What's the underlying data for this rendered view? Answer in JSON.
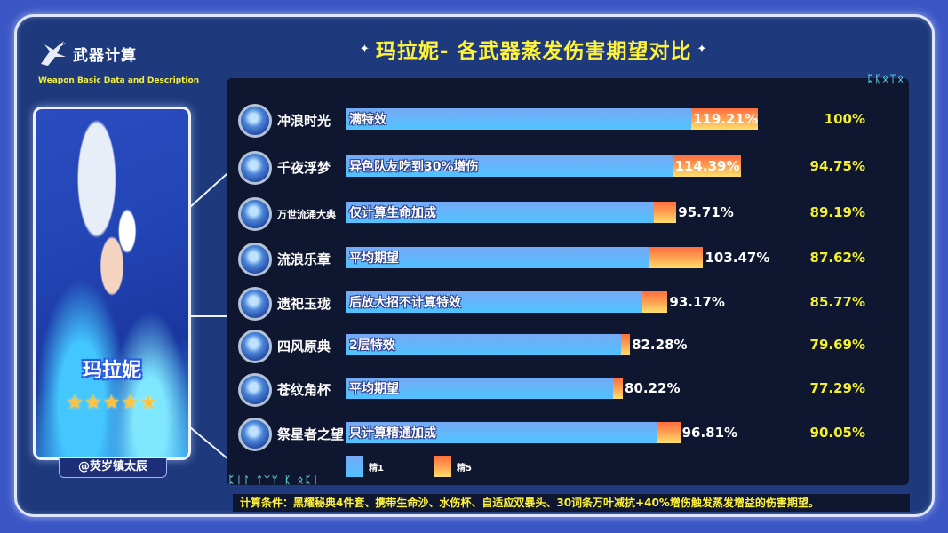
{
  "header": {
    "logo_text": "武器计算",
    "subtitle": "Weapon Basic Data and Description",
    "title": "玛拉妮- 各武器蒸发伤害期望对比",
    "sparkle_left": "✦",
    "sparkle_right": "✦"
  },
  "character": {
    "name": "玛拉妮",
    "stars": "★★★★★",
    "rarity": 5,
    "author": "@荧岁镇太辰"
  },
  "colors": {
    "refine1": "#5bb7ff",
    "refine5": "#ff8a48",
    "ratio_text": "#f4f02e",
    "panel_bg": "#0f1630",
    "frame_bg": "#1e3a7c"
  },
  "panel": {
    "deco_top": "ᛈᛕᛟᛉᛟ",
    "deco_bottom": "ᛈᛁᛚ ᛏᛉᛘ ᛕ ᛟᛈᛁ"
  },
  "legend": {
    "r1_label": "精1",
    "r5_label": "精5"
  },
  "rows": [
    {
      "weapon": "冲浪时光",
      "note": "满特效",
      "r1": 100.0,
      "r5": 119.21,
      "r5_label": "119.21%",
      "ratio": "100%",
      "icon": "surfs-up-icon",
      "small": false,
      "inside": true
    },
    {
      "weapon": "千夜浮梦",
      "note": "异色队友吃到30%增伤",
      "r1": 94.75,
      "r5": 114.39,
      "r5_label": "114.39%",
      "ratio": "94.75%",
      "icon": "thousand-floating-dreams-icon",
      "small": false,
      "inside": true
    },
    {
      "weapon": "万世流涌大典",
      "note": "仅计算生命加成",
      "r1": 89.19,
      "r5": 95.71,
      "r5_label": "95.71%",
      "ratio": "89.19%",
      "icon": "prototype-amber-icon",
      "small": true,
      "inside": false
    },
    {
      "weapon": "流浪乐章",
      "note": "平均期望",
      "r1": 87.62,
      "r5": 103.47,
      "r5_label": "103.47%",
      "ratio": "87.62%",
      "icon": "widsith-icon",
      "small": false,
      "inside": false
    },
    {
      "weapon": "遗祀玉珑",
      "note": "后放大招不计算特效",
      "r1": 85.77,
      "r5": 93.17,
      "r5_label": "93.17%",
      "ratio": "85.77%",
      "icon": "jadefall-splendor-icon",
      "small": false,
      "inside": false
    },
    {
      "weapon": "四风原典",
      "note": "2层特效",
      "r1": 79.69,
      "r5": 82.28,
      "r5_label": "82.28%",
      "ratio": "79.69%",
      "icon": "lost-prayer-icon",
      "small": false,
      "inside": false
    },
    {
      "weapon": "苍纹角杯",
      "note": "平均期望",
      "r1": 77.29,
      "r5": 80.22,
      "r5_label": "80.22%",
      "ratio": "77.29%",
      "icon": "ring-of-yaxche-icon",
      "small": false,
      "inside": false
    },
    {
      "weapon": "祭星者之望",
      "note": "只计算精通加成",
      "r1": 90.05,
      "r5": 96.81,
      "r5_label": "96.81%",
      "ratio": "90.05%",
      "icon": "starcallers-watch-icon",
      "small": false,
      "inside": false
    }
  ],
  "footer": {
    "conditions": "计算条件：黑耀秘典4件套、携带生命沙、水伤杯、自适应双暴头、30词条万叶减抗+40%增伤触发蒸发增益的伤害期望。"
  },
  "chart_data": {
    "type": "bar",
    "orientation": "horizontal",
    "stacked_overlay": true,
    "title": "玛拉妮- 各武器蒸发伤害期望对比",
    "categories": [
      "冲浪时光",
      "千夜浮梦",
      "万世流涌大典",
      "流浪乐章",
      "遗祀玉珑",
      "四风原典",
      "苍纹角杯",
      "祭星者之望"
    ],
    "annotations": [
      "满特效",
      "异色队友吃到30%增伤",
      "仅计算生命加成",
      "平均期望",
      "后放大招不计算特效",
      "2层特效",
      "平均期望",
      "只计算精通加成"
    ],
    "series": [
      {
        "name": "精1",
        "values": [
          100.0,
          94.75,
          89.19,
          87.62,
          85.77,
          79.69,
          77.29,
          90.05
        ]
      },
      {
        "name": "精5",
        "values": [
          119.21,
          114.39,
          95.71,
          103.47,
          93.17,
          82.28,
          80.22,
          96.81
        ]
      }
    ],
    "value_unit": "%",
    "legend": [
      "精1",
      "精5"
    ],
    "legend_position": "bottom",
    "grid": false,
    "xlim": [
      0,
      125
    ],
    "footnote": "计算条件：黑耀秘典4件套、携带生命沙、水伤杯、自适应双暴头、30词条万叶减抗+40%增伤触发蒸发增益的伤害期望。"
  }
}
